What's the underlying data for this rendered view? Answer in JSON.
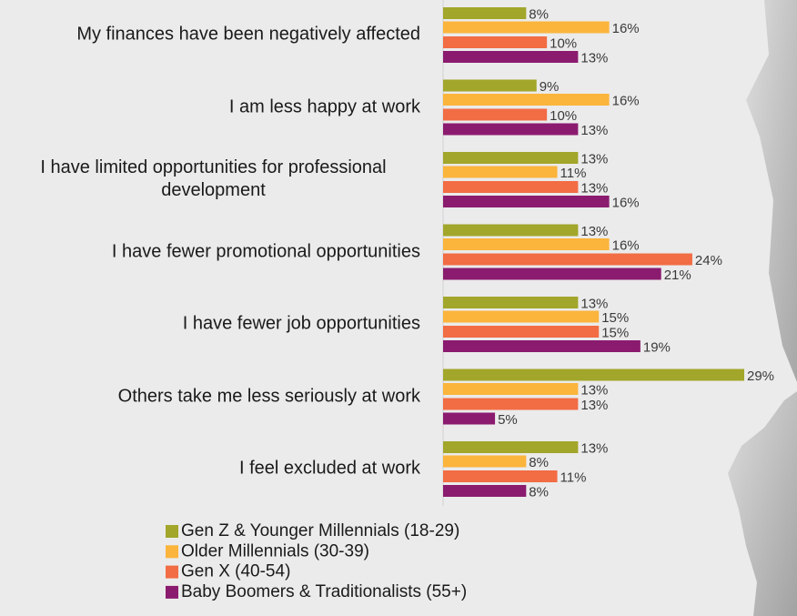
{
  "chart_data": {
    "type": "bar",
    "orientation": "horizontal",
    "categories": [
      "My finances have been negatively affected",
      "I am less happy at work",
      "I have limited opportunities for professional development",
      "I have fewer promotional opportunities",
      "I have fewer job opportunities",
      "Others take me less seriously at work",
      "I feel excluded at work"
    ],
    "series": [
      {
        "name": "Gen Z & Younger Millennials (18-29)",
        "color": "#a2a62a",
        "values": [
          8,
          9,
          13,
          13,
          13,
          29,
          13
        ],
        "value_labels": [
          "8%",
          "9%",
          "13%",
          "13%",
          "13%",
          "29%",
          "13%"
        ]
      },
      {
        "name": "Older Millennials (30-39)",
        "color": "#fbb43c",
        "values": [
          16,
          16,
          11,
          16,
          15,
          13,
          8
        ],
        "value_labels": [
          "16%",
          "16%",
          "11%",
          "16%",
          "15%",
          "13%",
          "8%"
        ]
      },
      {
        "name": "Gen X (40-54)",
        "color": "#f26c44",
        "values": [
          10,
          10,
          13,
          24,
          15,
          13,
          11
        ],
        "value_labels": [
          "10%",
          "10%",
          "13%",
          "24%",
          "15%",
          "13%",
          "11%"
        ]
      },
      {
        "name": "Baby Boomers & Traditionalists (55+)",
        "color": "#8b1b6f",
        "values": [
          13,
          13,
          16,
          21,
          19,
          5,
          8
        ],
        "value_labels": [
          "13%",
          "13%",
          "16%",
          "21%",
          "19%",
          "5%",
          "8%"
        ]
      }
    ]
  }
}
